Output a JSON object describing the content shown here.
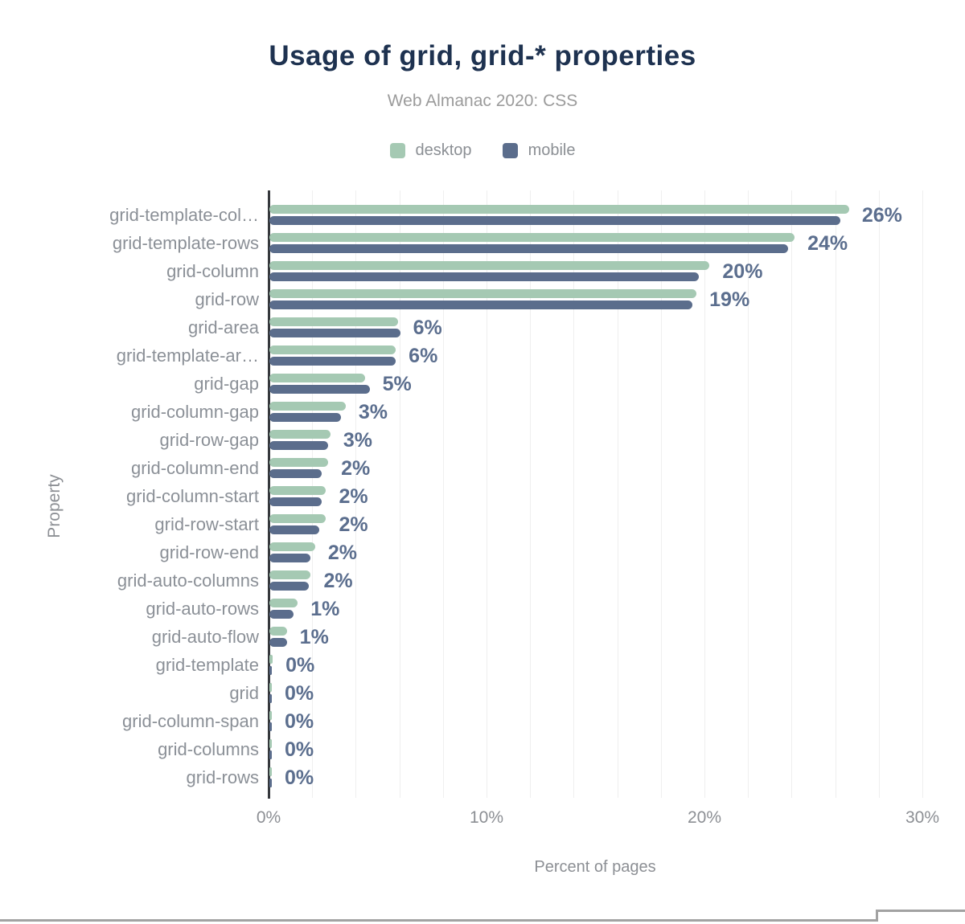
{
  "chart": {
    "title": "Usage of grid, grid-* properties",
    "subtitle": "Web Almanac 2020: CSS",
    "xlabel": "Percent of pages",
    "ylabel": "Property",
    "legend": [
      {
        "label": "desktop",
        "color": "#a5c9b3"
      },
      {
        "label": "mobile",
        "color": "#5b6d8c"
      }
    ]
  },
  "chart_data": {
    "type": "bar",
    "orientation": "horizontal",
    "title": "Usage of grid, grid-* properties",
    "subtitle": "Web Almanac 2020: CSS",
    "xlabel": "Percent of pages",
    "ylabel": "Property",
    "legend_position": "top",
    "grid": "vertical gridlines every 2%",
    "xlim": [
      0,
      30.5
    ],
    "x_ticks": [
      "0%",
      "10%",
      "20%",
      "30%"
    ],
    "categories": [
      "grid-template-col…",
      "grid-template-rows",
      "grid-column",
      "grid-row",
      "grid-area",
      "grid-template-ar…",
      "grid-gap",
      "grid-column-gap",
      "grid-row-gap",
      "grid-column-end",
      "grid-column-start",
      "grid-row-start",
      "grid-row-end",
      "grid-auto-columns",
      "grid-auto-rows",
      "grid-auto-flow",
      "grid-template",
      "grid",
      "grid-column-span",
      "grid-columns",
      "grid-rows"
    ],
    "series": [
      {
        "name": "desktop",
        "color": "#a5c9b3",
        "values": [
          26.6,
          24.1,
          20.2,
          19.6,
          5.9,
          5.8,
          4.4,
          3.5,
          2.8,
          2.7,
          2.6,
          2.6,
          2.1,
          1.9,
          1.3,
          0.8,
          0.15,
          0.1,
          0.05,
          0.05,
          0.05
        ]
      },
      {
        "name": "mobile",
        "color": "#5b6d8c",
        "values": [
          26.2,
          23.8,
          19.7,
          19.4,
          6.0,
          5.8,
          4.6,
          3.3,
          2.7,
          2.4,
          2.4,
          2.3,
          1.9,
          1.8,
          1.1,
          0.8,
          0.1,
          0.05,
          0.05,
          0.05,
          0.05
        ]
      }
    ],
    "value_labels": [
      "26%",
      "24%",
      "20%",
      "19%",
      "6%",
      "6%",
      "5%",
      "3%",
      "3%",
      "2%",
      "2%",
      "2%",
      "2%",
      "2%",
      "1%",
      "1%",
      "0%",
      "0%",
      "0%",
      "0%",
      "0%"
    ],
    "value_label_color": "#5b6e8e",
    "title_color": "#1e3250",
    "axis_text_color": "#8c8f94"
  }
}
